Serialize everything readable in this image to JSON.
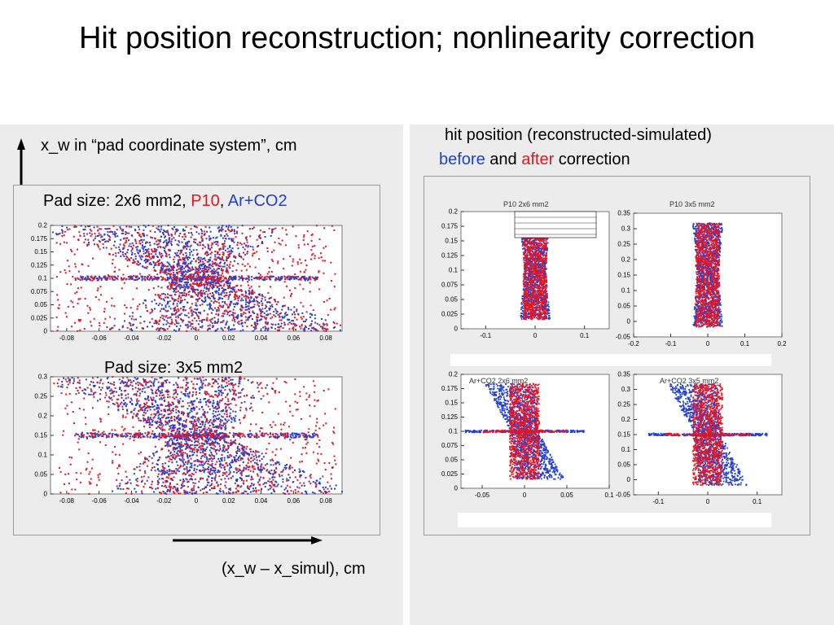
{
  "title": "Hit position reconstruction; nonlinearity correction",
  "left": {
    "y_axis_label": "x_w in “pad coordinate system”, cm",
    "x_axis_label": "(x_w – x_simul), cm",
    "plot1_caption": {
      "prefix": "Pad size: 2x6 mm2, ",
      "gas1": "P10",
      "sep": ", ",
      "gas2": "Ar+CO2"
    },
    "plot2_caption": "Pad size: 3x5 mm2"
  },
  "right": {
    "caption_line1": "hit position (reconstructed-simulated)",
    "caption_before": "before",
    "caption_and": " and ",
    "caption_after": "after",
    "caption_tail": " correction",
    "panel_titles": [
      "P10 2x6 mm2",
      "P10 3x5 mm2",
      "Ar+CO2 2x6 mm2",
      "Ar+CO2 3x5 mm2"
    ]
  },
  "colors": {
    "before": "#1f3fd6",
    "after": "#e8141e",
    "p10": "#e8141e",
    "arco2": "#1f3fd6"
  },
  "chart_data": [
    {
      "type": "scatter",
      "title": "Pad size: 2x6 mm2, P10, Ar+CO2",
      "xlim": [
        -0.09,
        0.09
      ],
      "ylim": [
        0,
        0.2
      ],
      "xticks": [
        "-0.08",
        "-0.06",
        "-0.04",
        "-0.02",
        "0",
        "0.02",
        "0.04",
        "0.06",
        "0.08"
      ],
      "yticks": [
        "0",
        "0.025",
        "0.05",
        "0.075",
        "0.1",
        "0.125",
        "0.15",
        "0.175",
        "0.2"
      ],
      "series": [
        {
          "name": "P10",
          "color": "#e8141e"
        },
        {
          "name": "Ar+CO2",
          "color": "#1f3fd6"
        }
      ]
    },
    {
      "type": "scatter",
      "title": "Pad size: 3x5 mm2",
      "xlim": [
        -0.09,
        0.09
      ],
      "ylim": [
        0,
        0.3
      ],
      "xticks": [
        "-0.08",
        "-0.06",
        "-0.04",
        "-0.02",
        "0",
        "0.02",
        "0.04",
        "0.06",
        "0.08"
      ],
      "yticks": [
        "0",
        "0.05",
        "0.1",
        "0.15",
        "0.2",
        "0.25",
        "0.3"
      ]
    },
    {
      "type": "scatter",
      "title": "P10 2x6 mm2",
      "xlim": [
        -0.15,
        0.15
      ],
      "ylim": [
        0,
        0.2
      ],
      "xticks": [
        "-0.1",
        "0",
        "0.1"
      ],
      "yticks": [
        "0",
        "0.025",
        "0.05",
        "0.075",
        "0.1",
        "0.125",
        "0.15",
        "0.175",
        "0.2"
      ]
    },
    {
      "type": "scatter",
      "title": "P10 3x5 mm2",
      "xlim": [
        -0.2,
        0.2
      ],
      "ylim": [
        -0.05,
        0.35
      ],
      "xticks": [
        "-0.2",
        "-0.1",
        "0",
        "0.1",
        "0.2"
      ],
      "yticks": [
        "-0.05",
        "0",
        "0.05",
        "0.1",
        "0.15",
        "0.2",
        "0.25",
        "0.3",
        "0.35"
      ]
    },
    {
      "type": "scatter",
      "title": "Ar+CO2 2x6 mm2",
      "xlim": [
        -0.075,
        0.1
      ],
      "ylim": [
        0,
        0.2
      ],
      "xticks": [
        "-0.05",
        "0",
        "0.05",
        "0.1"
      ],
      "yticks": [
        "0",
        "0.025",
        "0.05",
        "0.075",
        "0.1",
        "0.125",
        "0.15",
        "0.175",
        "0.2"
      ]
    },
    {
      "type": "scatter",
      "title": "Ar+CO2 3x5 mm2",
      "xlim": [
        -0.15,
        0.15
      ],
      "ylim": [
        -0.05,
        0.35
      ],
      "xticks": [
        "-0.1",
        "0",
        "0.1"
      ],
      "yticks": [
        "-0.05",
        "0",
        "0.05",
        "0.1",
        "0.15",
        "0.2",
        "0.25",
        "0.3",
        "0.35"
      ]
    }
  ]
}
